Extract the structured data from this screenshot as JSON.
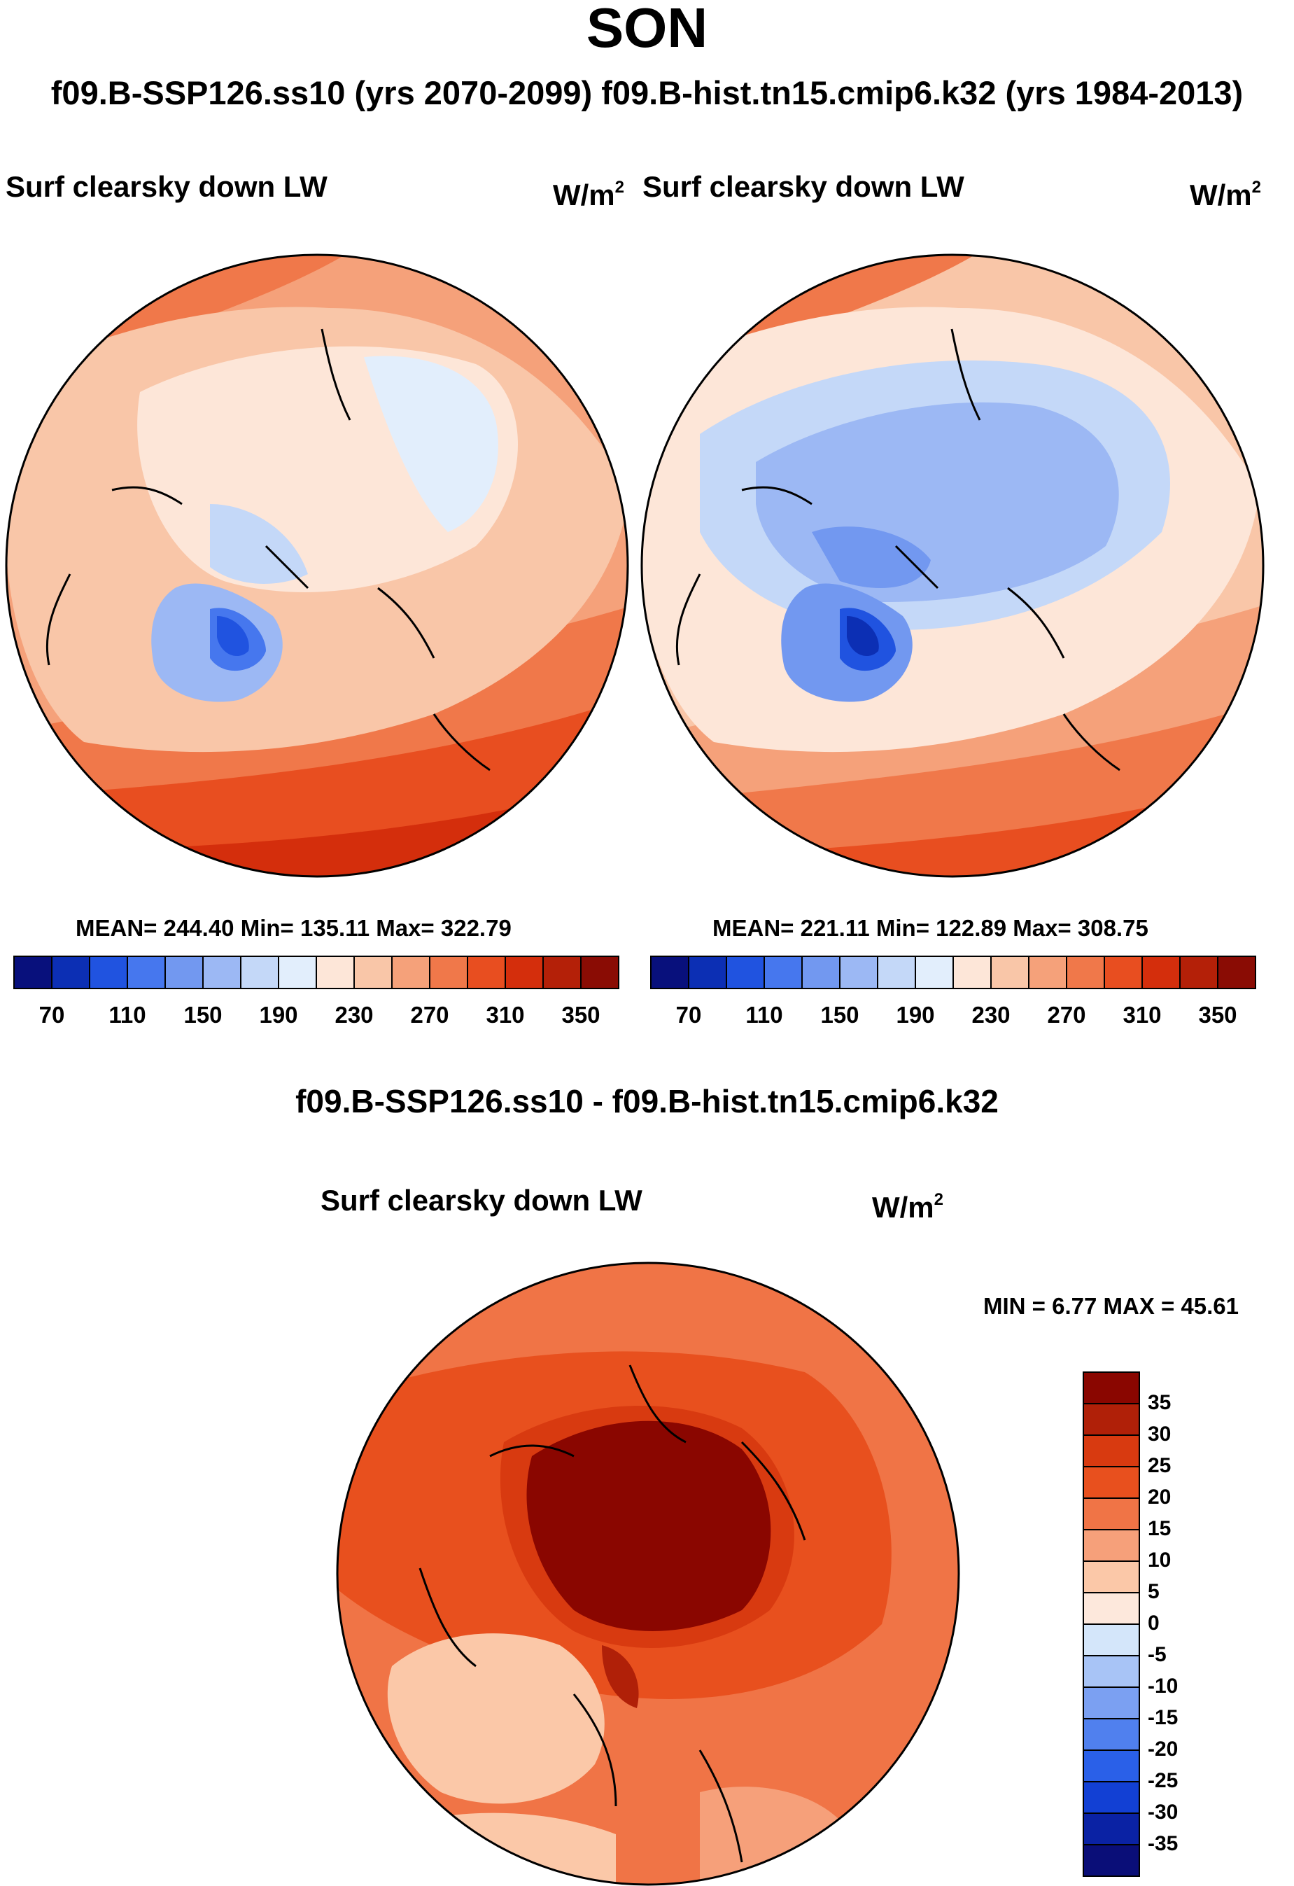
{
  "figure": {
    "season": "SON",
    "subtitle": "f09.B-SSP126.ss10 (yrs 2070-2099)  f09.B-hist.tn15.cmip6.k32 (yrs 1984-2013)",
    "diff_title": "f09.B-SSP126.ss10 - f09.B-hist.tn15.cmip6.k32"
  },
  "panels": [
    {
      "id": "future",
      "title": "Surf clearsky down LW",
      "units": "W/m",
      "units_exp": "2",
      "stats": "MEAN= 244.40  Min= 135.11  Max= 322.79",
      "colorbar_ticks": [
        "70",
        "110",
        "150",
        "190",
        "230",
        "270",
        "310",
        "350"
      ]
    },
    {
      "id": "historical",
      "title": "Surf clearsky down LW",
      "units": "W/m",
      "units_exp": "2",
      "stats": "MEAN= 221.11  Min= 122.89  Max= 308.75",
      "colorbar_ticks": [
        "70",
        "110",
        "150",
        "190",
        "230",
        "270",
        "310",
        "350"
      ]
    },
    {
      "id": "difference",
      "title": "Surf clearsky down LW",
      "units": "W/m",
      "units_exp": "2",
      "stats": "MIN =   6.77 MAX =  45.61",
      "colorbar_ticks": [
        "35",
        "30",
        "25",
        "20",
        "15",
        "10",
        "5",
        "0",
        "-5",
        "-10",
        "-15",
        "-20",
        "-25",
        "-30",
        "-35"
      ]
    }
  ],
  "chart_data": [
    {
      "type": "heatmap",
      "projection": "north polar stereographic",
      "title": "Surf clearsky down LW",
      "units": "W/m2",
      "period": "yrs 2070-2099",
      "case": "f09.B-SSP126.ss10",
      "levels": [
        70,
        90,
        110,
        130,
        150,
        170,
        190,
        210,
        230,
        250,
        270,
        290,
        310,
        330,
        350
      ],
      "mean": 244.4,
      "min": 135.11,
      "max": 322.79,
      "colors": [
        "#08107c",
        "#0c2fb4",
        "#2053e0",
        "#4677ee",
        "#7298f0",
        "#9cb8f4",
        "#c4d8f8",
        "#e2eefc",
        "#fde6d8",
        "#f9c6a8",
        "#f5a17a",
        "#f0784a",
        "#e84e20",
        "#d42e0c",
        "#b42008",
        "#8a0c04"
      ]
    },
    {
      "type": "heatmap",
      "projection": "north polar stereographic",
      "title": "Surf clearsky down LW",
      "units": "W/m2",
      "period": "yrs 1984-2013",
      "case": "f09.B-hist.tn15.cmip6.k32",
      "levels": [
        70,
        90,
        110,
        130,
        150,
        170,
        190,
        210,
        230,
        250,
        270,
        290,
        310,
        330,
        350
      ],
      "mean": 221.11,
      "min": 122.89,
      "max": 308.75,
      "colors": [
        "#08107c",
        "#0c2fb4",
        "#2053e0",
        "#4677ee",
        "#7298f0",
        "#9cb8f4",
        "#c4d8f8",
        "#e2eefc",
        "#fde6d8",
        "#f9c6a8",
        "#f5a17a",
        "#f0784a",
        "#e84e20",
        "#d42e0c",
        "#b42008",
        "#8a0c04"
      ]
    },
    {
      "type": "heatmap",
      "projection": "north polar stereographic",
      "title": "Surf clearsky down LW",
      "units": "W/m2",
      "case": "f09.B-SSP126.ss10 - f09.B-hist.tn15.cmip6.k32",
      "levels": [
        -35,
        -30,
        -25,
        -20,
        -15,
        -10,
        -5,
        0,
        5,
        10,
        15,
        20,
        25,
        30,
        35
      ],
      "min": 6.77,
      "max": 45.61,
      "colors": [
        "#0a0e78",
        "#0a22a4",
        "#1240d4",
        "#2a60e8",
        "#5080ee",
        "#7ba0f2",
        "#a8c4f6",
        "#d4e6fa",
        "#fde8dc",
        "#fbc8a8",
        "#f6a07a",
        "#f07446",
        "#e8501e",
        "#d83a10",
        "#b02008",
        "#8a0600"
      ]
    }
  ]
}
